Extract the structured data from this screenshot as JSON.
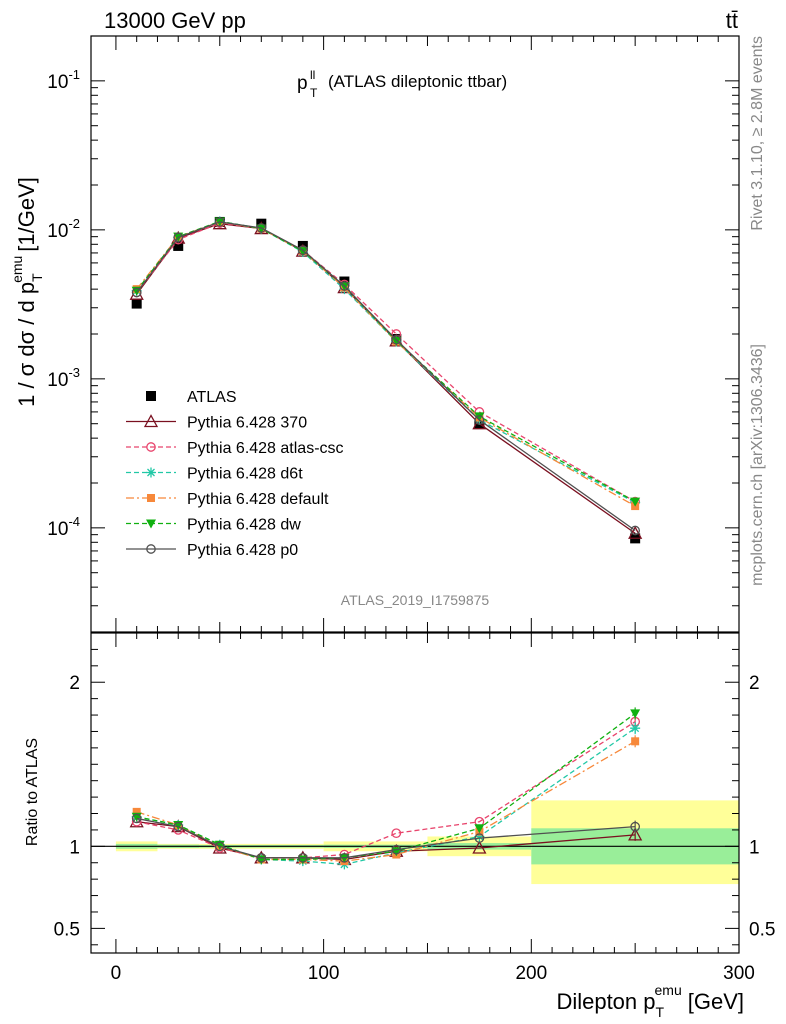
{
  "header": {
    "energy_label": "13000 GeV pp",
    "process_label": "tt̄",
    "rivet_label": "Rivet 3.1.10, ≥ 2.8M events",
    "mcplots_label": "mcplots.cern.ch [arXiv:1306.3436]"
  },
  "chart_data": [
    {
      "type": "line",
      "title_main": "p",
      "title_sup": "ll",
      "title_sub": "T",
      "title_rest": "(ATLAS dileptonic ttbar)",
      "watermark": "ATLAS_2019_I1759875",
      "ylabel": "1 / σ dσ / d p",
      "ylabel_sub": "T",
      "ylabel_sup": "emu",
      "ylabel_unit": "[1/GeV]",
      "yscale": "log",
      "xlim": [
        -12,
        300
      ],
      "ylim": [
        2e-05,
        0.2
      ],
      "y_tick_labels": [
        "10^-1",
        "10^-2",
        "10^-3",
        "10^-4"
      ],
      "legend_position": "middle-left",
      "x": [
        10,
        30,
        50,
        70,
        90,
        110,
        135,
        175,
        250
      ],
      "series": [
        {
          "name": "ATLAS",
          "color": "#000000",
          "marker": "square",
          "values": [
            0.0032,
            0.0078,
            0.0113,
            0.011,
            0.0078,
            0.0045,
            0.00185,
            0.0005,
            8.5e-05
          ]
        },
        {
          "name": "Pythia 6.428 370",
          "color": "#7a1020",
          "marker": "triangle",
          "dash": "solid",
          "values": [
            0.0037,
            0.0088,
            0.011,
            0.0102,
            0.0072,
            0.0041,
            0.0018,
            0.0005,
            9.2e-05
          ]
        },
        {
          "name": "Pythia 6.428 atlas-csc",
          "color": "#e8446c",
          "marker": "circle",
          "dash": "dashed",
          "values": [
            0.0038,
            0.0086,
            0.0111,
            0.0102,
            0.0073,
            0.0043,
            0.002,
            0.0006,
            0.00015
          ]
        },
        {
          "name": "Pythia 6.428 d6t",
          "color": "#22c8a6",
          "marker": "asterisk",
          "dash": "dashed",
          "values": [
            0.0039,
            0.0089,
            0.0114,
            0.0102,
            0.0071,
            0.004,
            0.00178,
            0.00053,
            0.000148
          ]
        },
        {
          "name": "Pythia 6.428 default",
          "color": "#f7883a",
          "marker": "filledsquare",
          "dash": "dashdot",
          "values": [
            0.004,
            0.009,
            0.0113,
            0.0102,
            0.0072,
            0.0041,
            0.00178,
            0.00055,
            0.00014
          ]
        },
        {
          "name": "Pythia 6.428 dw",
          "color": "#10b010",
          "marker": "downtriangle",
          "dash": "dashed",
          "values": [
            0.0039,
            0.009,
            0.0114,
            0.0102,
            0.0072,
            0.0042,
            0.0018,
            0.00056,
            0.00015
          ]
        },
        {
          "name": "Pythia 6.428 p0",
          "color": "#505050",
          "marker": "circle",
          "dash": "solid",
          "values": [
            0.0038,
            0.0089,
            0.0113,
            0.0103,
            0.0073,
            0.0042,
            0.00183,
            0.00053,
            9.6e-05
          ]
        }
      ]
    },
    {
      "type": "line",
      "ylabel": "Ratio to ATLAS",
      "xlabel": "Dilepton p",
      "xlabel_sub": "T",
      "xlabel_sup": "emu",
      "xlabel_unit": "[GeV]",
      "xlim": [
        -12,
        300
      ],
      "ylim": [
        0.35,
        2.3
      ],
      "x_ticks": [
        0,
        100,
        200,
        300
      ],
      "y_ticks": [
        0.5,
        1,
        2
      ],
      "bands": [
        {
          "x0": 0,
          "x1": 20,
          "inner": [
            0.985,
            1.015
          ],
          "outer": [
            0.97,
            1.03
          ]
        },
        {
          "x0": 20,
          "x1": 40,
          "inner": [
            0.99,
            1.01
          ],
          "outer": [
            0.985,
            1.015
          ]
        },
        {
          "x0": 40,
          "x1": 100,
          "inner": [
            0.992,
            1.008
          ],
          "outer": [
            0.985,
            1.015
          ]
        },
        {
          "x0": 100,
          "x1": 150,
          "inner": [
            0.99,
            1.01
          ],
          "outer": [
            0.97,
            1.03
          ]
        },
        {
          "x0": 150,
          "x1": 200,
          "inner": [
            0.98,
            1.02
          ],
          "outer": [
            0.94,
            1.06
          ]
        },
        {
          "x0": 200,
          "x1": 300,
          "inner": [
            0.89,
            1.11
          ],
          "outer": [
            0.77,
            1.28
          ]
        }
      ],
      "x": [
        10,
        30,
        50,
        70,
        90,
        110,
        135,
        175,
        250
      ],
      "series": [
        {
          "name": "Pythia 6.428 370",
          "values": [
            1.15,
            1.12,
            0.99,
            0.93,
            0.93,
            0.92,
            0.97,
            0.99,
            1.07
          ]
        },
        {
          "name": "Pythia 6.428 atlas-csc",
          "values": [
            1.15,
            1.1,
            0.99,
            0.93,
            0.93,
            0.95,
            1.08,
            1.15,
            1.76
          ]
        },
        {
          "name": "Pythia 6.428 d6t",
          "values": [
            1.18,
            1.13,
            1.01,
            0.92,
            0.91,
            0.89,
            0.96,
            1.06,
            1.72
          ]
        },
        {
          "name": "Pythia 6.428 default",
          "values": [
            1.21,
            1.13,
            1.0,
            0.92,
            0.92,
            0.91,
            0.95,
            1.09,
            1.64
          ]
        },
        {
          "name": "Pythia 6.428 dw",
          "values": [
            1.18,
            1.13,
            1.01,
            0.92,
            0.92,
            0.93,
            0.97,
            1.11,
            1.81
          ]
        },
        {
          "name": "Pythia 6.428 p0",
          "values": [
            1.17,
            1.12,
            1.0,
            0.93,
            0.93,
            0.93,
            0.98,
            1.05,
            1.12
          ]
        }
      ]
    }
  ]
}
